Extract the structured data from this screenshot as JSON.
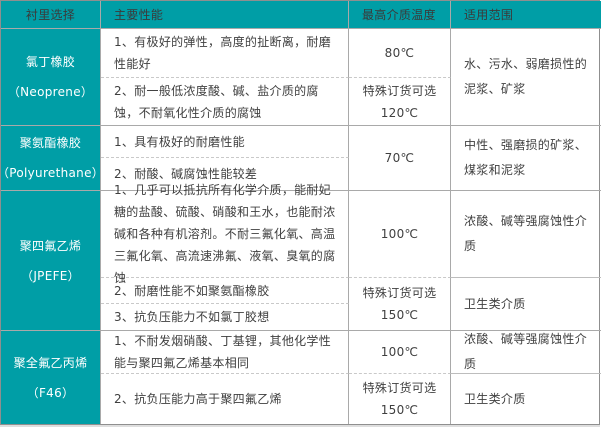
{
  "table": {
    "headers": [
      "衬里选择",
      "主要性能",
      "最高介质温度",
      "适用范围"
    ],
    "colors": {
      "teal": "#009EA6",
      "header_text": "#3a3a3a",
      "body_text": "#3f3f3f",
      "material_text": "#ffffff",
      "grid_line": "#a9a9a9",
      "dashed_line": "#c9c9c9"
    },
    "rows": [
      {
        "material": "氯丁橡胶",
        "material_en": "（Neoprene）",
        "performance": [
          "1、有极好的弹性，高度的扯断离，耐磨性能好",
          "2、耐一般低浓度酸、碱、盐介质的腐蚀，不耐氧化性介质的腐蚀"
        ],
        "temperature": [
          "80℃",
          "特殊订货可选\n120℃"
        ],
        "application": [
          "水、污水、弱磨损性的泥浆、矿浆"
        ]
      },
      {
        "material": "聚氨酯橡胶",
        "material_en": "（Polyurethane）",
        "performance": [
          "1、具有极好的耐磨性能",
          "2、耐酸、碱腐蚀性能较差"
        ],
        "temperature": [
          "70℃"
        ],
        "application": [
          "中性、强磨损的矿浆、煤浆和泥浆"
        ]
      },
      {
        "material": "聚四氟乙烯",
        "material_en": "（JPEFE）",
        "performance": [
          "1、几乎可以抵抗所有化学介质，能耐妃糖的盐酸、硫酸、硝酸和王水，也能耐浓碱和各种有机溶剂。不耐三氟化氧、高温三氟化氧、高流速沸氟、液氧、臭氧的腐蚀",
          "2、耐磨性能不如聚氨酯橡胶",
          "3、抗负压能力不如氯丁胶想"
        ],
        "temperature": [
          "100℃",
          "特殊订货可选\n150℃"
        ],
        "application": [
          "浓酸、碱等强腐蚀性介质",
          "卫生类介质"
        ]
      },
      {
        "material": "聚全氟乙丙烯",
        "material_en": "（F46）",
        "performance": [
          "1、不耐发烟硝酸、丁基锂，其他化学性能与聚四氟乙烯基本相同",
          "2、抗负压能力高于聚四氟乙烯"
        ],
        "temperature": [
          "100℃",
          "特殊订货可选\n150℃"
        ],
        "application": [
          "浓酸、碱等强腐蚀性介质",
          "卫生类介质"
        ]
      }
    ]
  }
}
